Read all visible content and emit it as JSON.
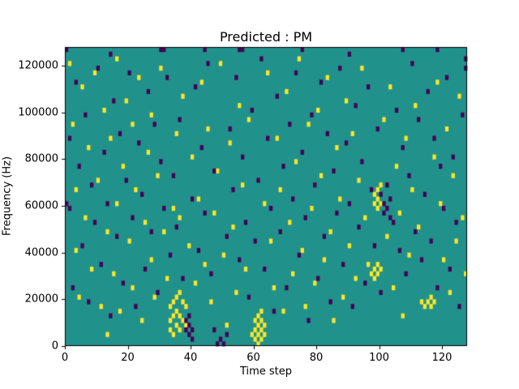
{
  "chart_data": {
    "type": "heatmap",
    "title": "Predicted : PM",
    "xlabel": "Time step",
    "ylabel": "Frequency (Hz)",
    "xlim": [
      0,
      128
    ],
    "ylim": [
      0,
      128000
    ],
    "x_ticks": [
      0,
      20,
      40,
      60,
      80,
      100,
      120
    ],
    "x_tick_labels": [
      "0",
      "20",
      "40",
      "60",
      "80",
      "100",
      "120"
    ],
    "y_ticks": [
      0,
      20000,
      40000,
      60000,
      80000,
      100000,
      120000
    ],
    "y_tick_labels": [
      "0",
      "20000",
      "40000",
      "60000",
      "80000",
      "100000",
      "120000"
    ],
    "grid": {
      "cols": 128,
      "rows": 64
    },
    "legend": "none",
    "colors": {
      "background": "#ffffff",
      "mid": "#21918c",
      "high": "#fde725",
      "low": "#440154",
      "axis": "#000000"
    },
    "cells": {
      "yellow": [
        [
          1,
          60
        ],
        [
          2,
          47
        ],
        [
          3,
          20
        ],
        [
          3,
          33
        ],
        [
          4,
          10
        ],
        [
          5,
          55
        ],
        [
          6,
          27
        ],
        [
          7,
          42
        ],
        [
          8,
          16
        ],
        [
          9,
          58
        ],
        [
          10,
          35
        ],
        [
          11,
          8
        ],
        [
          12,
          50
        ],
        [
          13,
          2
        ],
        [
          13,
          24
        ],
        [
          14,
          44
        ],
        [
          15,
          15
        ],
        [
          16,
          30
        ],
        [
          16,
          61
        ],
        [
          17,
          7
        ],
        [
          18,
          38
        ],
        [
          19,
          52
        ],
        [
          20,
          22
        ],
        [
          21,
          12
        ],
        [
          21,
          47
        ],
        [
          22,
          33
        ],
        [
          23,
          57
        ],
        [
          24,
          5
        ],
        [
          25,
          26
        ],
        [
          26,
          41
        ],
        [
          27,
          18
        ],
        [
          27,
          49
        ],
        [
          28,
          10
        ],
        [
          29,
          36
        ],
        [
          30,
          59
        ],
        [
          31,
          24
        ],
        [
          32,
          14
        ],
        [
          33,
          3
        ],
        [
          33,
          5
        ],
        [
          33,
          8
        ],
        [
          34,
          2
        ],
        [
          34,
          6
        ],
        [
          34,
          9
        ],
        [
          34,
          29
        ],
        [
          35,
          4
        ],
        [
          35,
          7
        ],
        [
          35,
          10
        ],
        [
          35,
          45
        ],
        [
          36,
          3
        ],
        [
          36,
          6
        ],
        [
          36,
          11
        ],
        [
          36,
          27
        ],
        [
          37,
          5
        ],
        [
          37,
          9
        ],
        [
          37,
          53
        ],
        [
          38,
          4
        ],
        [
          38,
          8
        ],
        [
          39,
          21
        ],
        [
          40,
          40
        ],
        [
          41,
          13
        ],
        [
          42,
          31
        ],
        [
          43,
          56
        ],
        [
          44,
          17
        ],
        [
          45,
          46
        ],
        [
          46,
          9
        ],
        [
          47,
          28
        ],
        [
          48,
          37
        ],
        [
          49,
          60
        ],
        [
          50,
          19
        ],
        [
          51,
          4
        ],
        [
          52,
          43
        ],
        [
          53,
          25
        ],
        [
          54,
          11
        ],
        [
          55,
          51
        ],
        [
          56,
          34
        ],
        [
          57,
          16
        ],
        [
          58,
          48
        ],
        [
          59,
          2
        ],
        [
          60,
          1
        ],
        [
          60,
          3
        ],
        [
          60,
          5
        ],
        [
          61,
          0
        ],
        [
          61,
          2
        ],
        [
          61,
          4
        ],
        [
          61,
          6
        ],
        [
          62,
          1
        ],
        [
          62,
          3
        ],
        [
          62,
          5
        ],
        [
          62,
          7
        ],
        [
          63,
          2
        ],
        [
          63,
          4
        ],
        [
          63,
          30
        ],
        [
          64,
          58
        ],
        [
          65,
          22
        ],
        [
          66,
          12
        ],
        [
          67,
          44
        ],
        [
          68,
          33
        ],
        [
          69,
          7
        ],
        [
          70,
          54
        ],
        [
          71,
          26
        ],
        [
          72,
          15
        ],
        [
          73,
          39
        ],
        [
          74,
          61
        ],
        [
          75,
          20
        ],
        [
          76,
          8
        ],
        [
          77,
          47
        ],
        [
          78,
          29
        ],
        [
          79,
          13
        ],
        [
          80,
          50
        ],
        [
          81,
          36
        ],
        [
          82,
          18
        ],
        [
          83,
          57
        ],
        [
          84,
          24
        ],
        [
          85,
          5
        ],
        [
          86,
          42
        ],
        [
          87,
          31
        ],
        [
          88,
          10
        ],
        [
          89,
          52
        ],
        [
          90,
          21
        ],
        [
          91,
          45
        ],
        [
          92,
          14
        ],
        [
          93,
          35
        ],
        [
          94,
          59
        ],
        [
          95,
          27
        ],
        [
          96,
          17
        ],
        [
          97,
          15
        ],
        [
          98,
          14
        ],
        [
          98,
          16
        ],
        [
          98,
          30
        ],
        [
          98,
          32
        ],
        [
          99,
          15
        ],
        [
          99,
          17
        ],
        [
          99,
          29
        ],
        [
          99,
          31
        ],
        [
          99,
          33
        ],
        [
          100,
          16
        ],
        [
          100,
          30
        ],
        [
          100,
          34
        ],
        [
          101,
          48
        ],
        [
          102,
          23
        ],
        [
          103,
          55
        ],
        [
          104,
          12
        ],
        [
          105,
          38
        ],
        [
          106,
          28
        ],
        [
          107,
          6
        ],
        [
          108,
          44
        ],
        [
          109,
          19
        ],
        [
          110,
          33
        ],
        [
          111,
          51
        ],
        [
          112,
          25
        ],
        [
          113,
          9
        ],
        [
          114,
          8
        ],
        [
          115,
          9
        ],
        [
          116,
          8
        ],
        [
          116,
          10
        ],
        [
          117,
          9
        ],
        [
          117,
          40
        ],
        [
          118,
          56
        ],
        [
          119,
          30
        ],
        [
          120,
          18
        ],
        [
          121,
          46
        ],
        [
          122,
          11
        ],
        [
          123,
          36
        ],
        [
          124,
          22
        ],
        [
          125,
          53
        ],
        [
          126,
          27
        ],
        [
          127,
          15
        ]
      ],
      "dark": [
        [
          0,
          30
        ],
        [
          0,
          63
        ],
        [
          1,
          29
        ],
        [
          1,
          44
        ],
        [
          2,
          12
        ],
        [
          3,
          56
        ],
        [
          4,
          38
        ],
        [
          5,
          21
        ],
        [
          6,
          49
        ],
        [
          7,
          9
        ],
        [
          8,
          34
        ],
        [
          9,
          26
        ],
        [
          10,
          59
        ],
        [
          11,
          17
        ],
        [
          12,
          41
        ],
        [
          13,
          30
        ],
        [
          14,
          6
        ],
        [
          14,
          62
        ],
        [
          15,
          52
        ],
        [
          16,
          23
        ],
        [
          17,
          45
        ],
        [
          18,
          13
        ],
        [
          19,
          35
        ],
        [
          20,
          58
        ],
        [
          21,
          27
        ],
        [
          22,
          8
        ],
        [
          23,
          43
        ],
        [
          24,
          32
        ],
        [
          25,
          16
        ],
        [
          26,
          54
        ],
        [
          27,
          24
        ],
        [
          28,
          47
        ],
        [
          29,
          11
        ],
        [
          30,
          39
        ],
        [
          30,
          63
        ],
        [
          31,
          29
        ],
        [
          31,
          63
        ],
        [
          32,
          57
        ],
        [
          33,
          19
        ],
        [
          34,
          36
        ],
        [
          35,
          25
        ],
        [
          36,
          48
        ],
        [
          37,
          14
        ],
        [
          38,
          3
        ],
        [
          38,
          5
        ],
        [
          39,
          2
        ],
        [
          39,
          4
        ],
        [
          39,
          6
        ],
        [
          40,
          1
        ],
        [
          40,
          3
        ],
        [
          40,
          31
        ],
        [
          41,
          55
        ],
        [
          42,
          20
        ],
        [
          43,
          42
        ],
        [
          44,
          28
        ],
        [
          44,
          63
        ],
        [
          45,
          60
        ],
        [
          46,
          15
        ],
        [
          47,
          3
        ],
        [
          47,
          37
        ],
        [
          48,
          0
        ],
        [
          49,
          1
        ],
        [
          50,
          0
        ],
        [
          51,
          2
        ],
        [
          51,
          23
        ],
        [
          52,
          46
        ],
        [
          53,
          33
        ],
        [
          54,
          57
        ],
        [
          55,
          18
        ],
        [
          55,
          63
        ],
        [
          56,
          40
        ],
        [
          56,
          63
        ],
        [
          57,
          26
        ],
        [
          58,
          10
        ],
        [
          59,
          50
        ],
        [
          60,
          22
        ],
        [
          61,
          35
        ],
        [
          62,
          61
        ],
        [
          63,
          16
        ],
        [
          64,
          44
        ],
        [
          65,
          29
        ],
        [
          66,
          7
        ],
        [
          67,
          53
        ],
        [
          68,
          24
        ],
        [
          69,
          38
        ],
        [
          70,
          12
        ],
        [
          71,
          47
        ],
        [
          72,
          31
        ],
        [
          73,
          58
        ],
        [
          74,
          19
        ],
        [
          75,
          41
        ],
        [
          75,
          63
        ],
        [
          76,
          27
        ],
        [
          77,
          5
        ],
        [
          78,
          49
        ],
        [
          79,
          34
        ],
        [
          80,
          14
        ],
        [
          81,
          56
        ],
        [
          82,
          23
        ],
        [
          83,
          45
        ],
        [
          84,
          9
        ],
        [
          85,
          37
        ],
        [
          86,
          28
        ],
        [
          87,
          59
        ],
        [
          88,
          17
        ],
        [
          89,
          43
        ],
        [
          90,
          30
        ],
        [
          90,
          62
        ],
        [
          91,
          8
        ],
        [
          92,
          51
        ],
        [
          93,
          25
        ],
        [
          94,
          39
        ],
        [
          95,
          13
        ],
        [
          96,
          55
        ],
        [
          97,
          33
        ],
        [
          98,
          21
        ],
        [
          99,
          46
        ],
        [
          100,
          11
        ],
        [
          100,
          32
        ],
        [
          101,
          28
        ],
        [
          101,
          30
        ],
        [
          102,
          29
        ],
        [
          102,
          34
        ],
        [
          103,
          27
        ],
        [
          103,
          31
        ],
        [
          104,
          26
        ],
        [
          105,
          50
        ],
        [
          106,
          20
        ],
        [
          107,
          42
        ],
        [
          107,
          63
        ],
        [
          108,
          15
        ],
        [
          109,
          36
        ],
        [
          110,
          60
        ],
        [
          111,
          24
        ],
        [
          112,
          48
        ],
        [
          113,
          18
        ],
        [
          114,
          32
        ],
        [
          115,
          54
        ],
        [
          116,
          22
        ],
        [
          117,
          44
        ],
        [
          118,
          12
        ],
        [
          118,
          63
        ],
        [
          119,
          38
        ],
        [
          120,
          29
        ],
        [
          121,
          57
        ],
        [
          122,
          16
        ],
        [
          123,
          40
        ],
        [
          124,
          26
        ],
        [
          125,
          8
        ],
        [
          126,
          49
        ],
        [
          127,
          59
        ],
        [
          127,
          61
        ]
      ]
    }
  }
}
